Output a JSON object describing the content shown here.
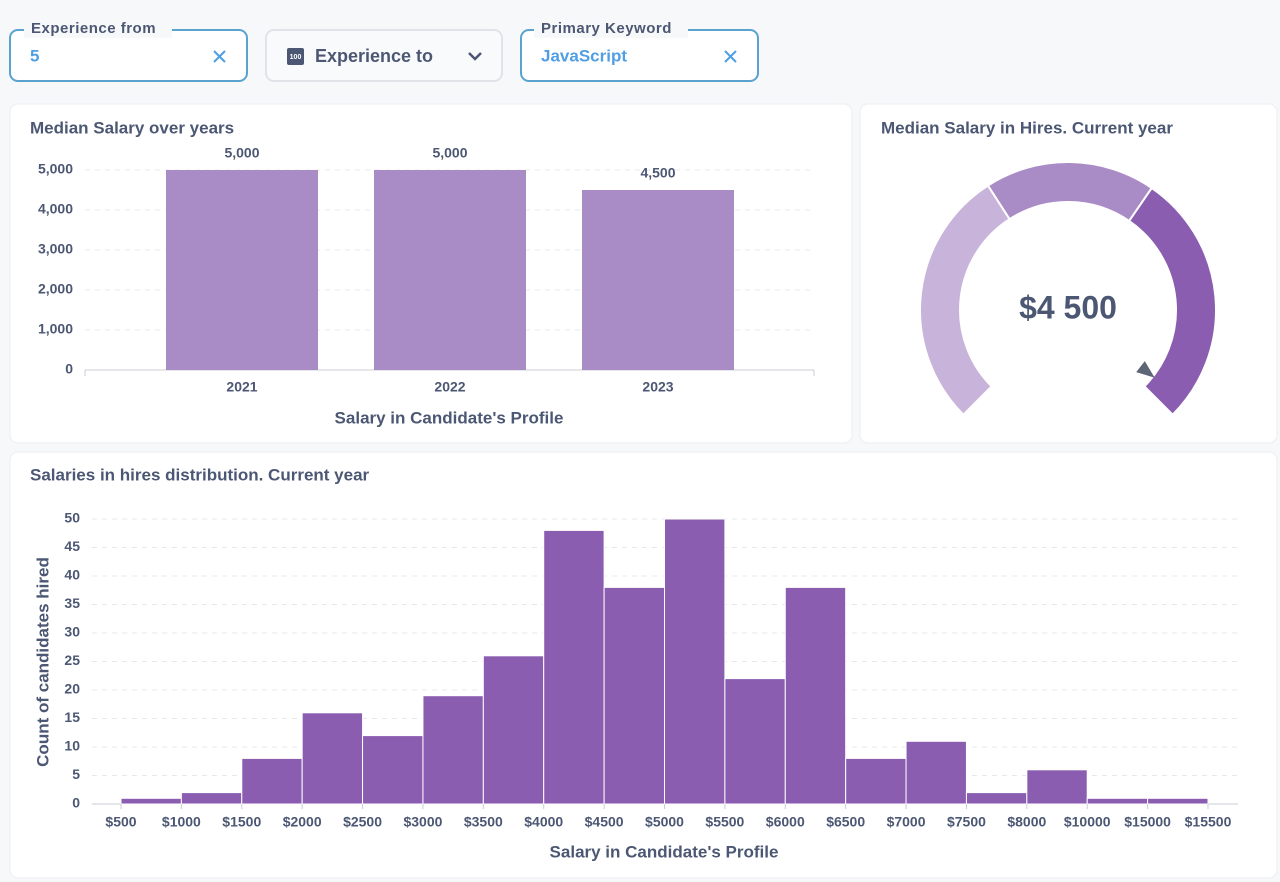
{
  "filters": [
    {
      "label": "Experience from",
      "value": "5"
    },
    {
      "icon": "100",
      "placeholder": "Experience to"
    },
    {
      "label": "Primary Keyword",
      "value": "JavaScript"
    }
  ],
  "chart_data": [
    {
      "type": "bar",
      "title": "Median Salary over years",
      "categories": [
        "2021",
        "2022",
        "2023"
      ],
      "values": [
        5000,
        5000,
        4500
      ],
      "value_labels": [
        "5,000",
        "5,000",
        "4,500"
      ],
      "color": "#a98bc6",
      "ylim": [
        0,
        5000
      ],
      "yticks": [
        0,
        {
          "value": 1000,
          "label": "1,000"
        },
        {
          "value": 2000,
          "label": "2,000"
        },
        {
          "value": 3000,
          "label": "3,000"
        },
        {
          "value": 4000,
          "label": "4,000"
        },
        {
          "value": 5000,
          "label": "5,000"
        }
      ],
      "xlabel": "Salary in Candidate's Profile",
      "grid": true
    },
    {
      "type": "gauge",
      "title": "Median Salary in Hires. Current year",
      "value": 4500,
      "value_label": "$4 500",
      "segments": [
        {
          "min": 0,
          "max": 1750,
          "color": "#c8b3da"
        },
        {
          "min": 1750,
          "max": 2900,
          "color": "#a98bc6"
        },
        {
          "min": 2900,
          "max": 4620,
          "color": "#8a5db0"
        }
      ]
    },
    {
      "type": "histogram",
      "title": "Salaries in hires distribution. Current year",
      "bins": [
        "$500",
        "$1000",
        "$1500",
        "$2000",
        "$2500",
        "$3000",
        "$3500",
        "$4000",
        "$4500",
        "$5000",
        "$5500",
        "$6000",
        "$6500",
        "$7000",
        "$7500",
        "$8000",
        "$10000",
        "$15000",
        "$15500"
      ],
      "values": [
        1,
        2,
        8,
        16,
        12,
        19,
        26,
        48,
        38,
        50,
        22,
        38,
        8,
        11,
        2,
        6,
        1,
        1
      ],
      "color": "#8a5db0",
      "ylim": [
        0,
        50
      ],
      "yticks": [
        0,
        5,
        10,
        15,
        20,
        25,
        30,
        35,
        40,
        45,
        50
      ],
      "xlabel": "Salary in Candidate's Profile",
      "ylabel": "Count of candidates hired",
      "grid": true
    }
  ]
}
